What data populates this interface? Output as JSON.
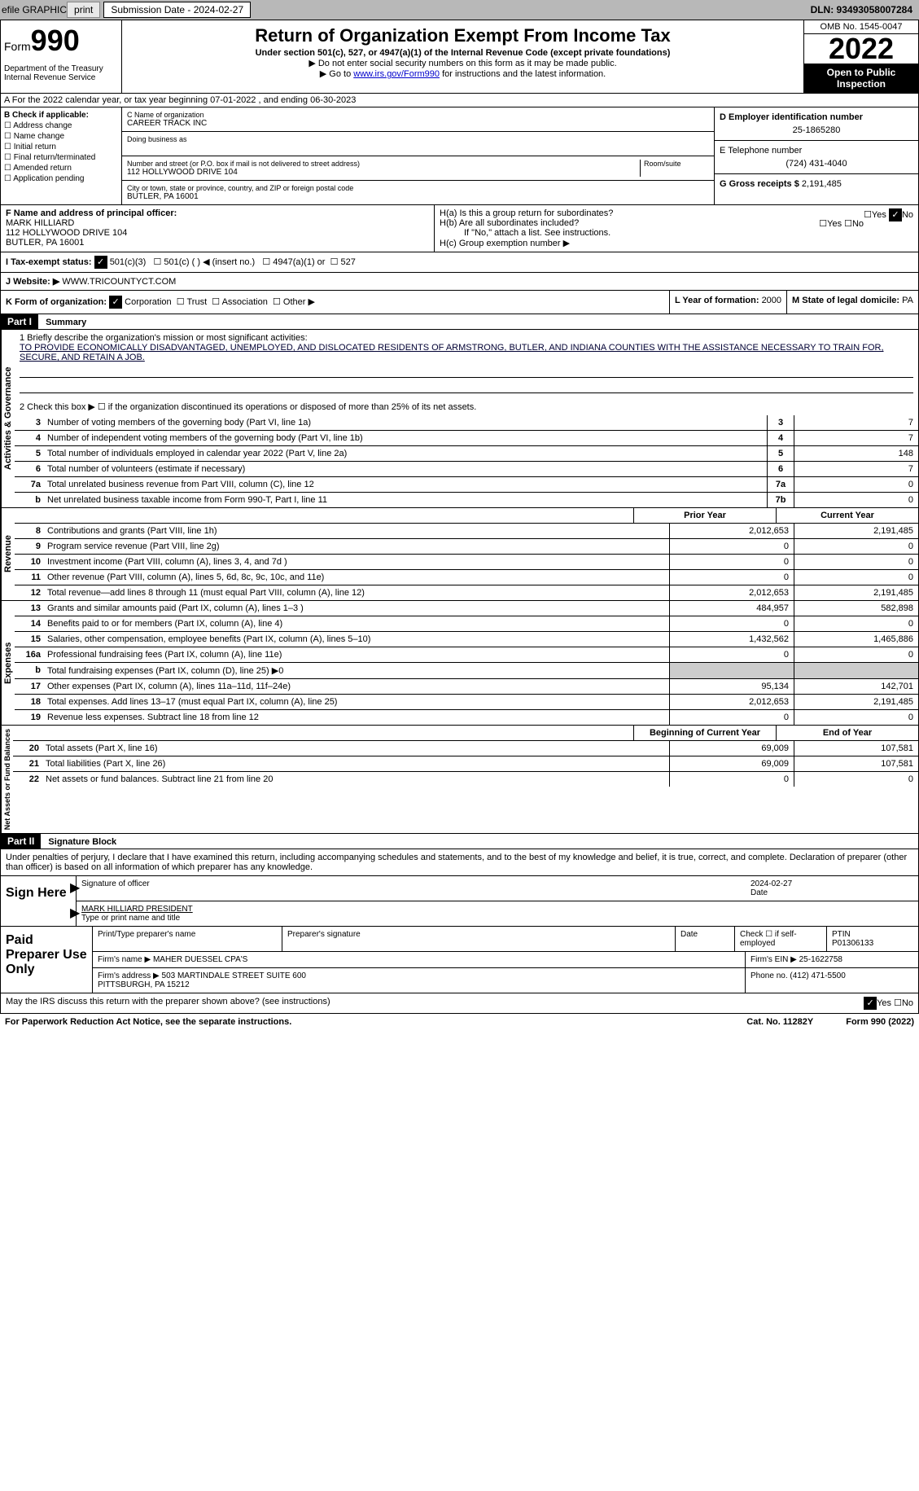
{
  "topbar": {
    "efile": "efile GRAPHIC",
    "print": "print",
    "sub_date_label": "Submission Date - 2024-02-27",
    "dln": "DLN: 93493058007284"
  },
  "header": {
    "form_label": "Form",
    "form_num": "990",
    "dept": "Department of the Treasury\nInternal Revenue Service",
    "title": "Return of Organization Exempt From Income Tax",
    "subtitle": "Under section 501(c), 527, or 4947(a)(1) of the Internal Revenue Code (except private foundations)",
    "note1": "▶ Do not enter social security numbers on this form as it may be made public.",
    "note2_pre": "▶ Go to ",
    "note2_link": "www.irs.gov/Form990",
    "note2_post": " for instructions and the latest information.",
    "omb": "OMB No. 1545-0047",
    "year": "2022",
    "inspection": "Open to Public Inspection"
  },
  "section_a": "A For the 2022 calendar year, or tax year beginning 07-01-2022 , and ending 06-30-2023",
  "section_b": {
    "label": "B Check if applicable:",
    "items": [
      "Address change",
      "Name change",
      "Initial return",
      "Final return/terminated",
      "Amended return",
      "Application pending"
    ]
  },
  "section_c": {
    "name_label": "C Name of organization",
    "name": "CAREER TRACK INC",
    "dba_label": "Doing business as",
    "addr_label": "Number and street (or P.O. box if mail is not delivered to street address)",
    "room_label": "Room/suite",
    "addr": "112 HOLLYWOOD DRIVE 104",
    "city_label": "City or town, state or province, country, and ZIP or foreign postal code",
    "city": "BUTLER, PA  16001"
  },
  "section_d": {
    "label": "D Employer identification number",
    "ein": "25-1865280"
  },
  "section_e": {
    "label": "E Telephone number",
    "phone": "(724) 431-4040"
  },
  "section_g": {
    "label": "G Gross receipts $",
    "val": "2,191,485"
  },
  "section_f": {
    "label": "F Name and address of principal officer:",
    "name": "MARK HILLIARD",
    "addr": "112 HOLLYWOOD DRIVE 104\nBUTLER, PA  16001"
  },
  "section_h": {
    "ha": "H(a) Is this a group return for subordinates?",
    "hb": "H(b) Are all subordinates included?",
    "hb_note": "If \"No,\" attach a list. See instructions.",
    "hc": "H(c) Group exemption number ▶"
  },
  "section_i": {
    "label": "I Tax-exempt status:",
    "opt1": "501(c)(3)",
    "opt2": "501(c) (  ) ◀ (insert no.)",
    "opt3": "4947(a)(1) or",
    "opt4": "527"
  },
  "section_j": {
    "label": "J Website: ▶",
    "url": "WWW.TRICOUNTYCT.COM"
  },
  "section_k": {
    "label": "K Form of organization:",
    "opts": [
      "Corporation",
      "Trust",
      "Association",
      "Other ▶"
    ]
  },
  "section_l": {
    "label": "L Year of formation:",
    "val": "2000"
  },
  "section_m": {
    "label": "M State of legal domicile:",
    "val": "PA"
  },
  "part1": {
    "header": "Part I",
    "title": "Summary",
    "line1_label": "1  Briefly describe the organization's mission or most significant activities:",
    "mission": "TO PROVIDE ECONOMICALLY DISADVANTAGED, UNEMPLOYED, AND DISLOCATED RESIDENTS OF ARMSTRONG, BUTLER, AND INDIANA COUNTIES WITH THE ASSISTANCE NECESSARY TO TRAIN FOR, SECURE, AND RETAIN A JOB.",
    "line2": "2  Check this box ▶ ☐ if the organization discontinued its operations or disposed of more than 25% of its net assets.",
    "governance_label": "Activities & Governance",
    "revenue_label": "Revenue",
    "expenses_label": "Expenses",
    "netassets_label": "Net Assets or Fund Balances",
    "prior_year": "Prior Year",
    "current_year": "Current Year",
    "begin_year": "Beginning of Current Year",
    "end_year": "End of Year",
    "lines_gov": [
      {
        "n": "3",
        "t": "Number of voting members of the governing body (Part VI, line 1a)",
        "box": "3",
        "v": "7"
      },
      {
        "n": "4",
        "t": "Number of independent voting members of the governing body (Part VI, line 1b)",
        "box": "4",
        "v": "7"
      },
      {
        "n": "5",
        "t": "Total number of individuals employed in calendar year 2022 (Part V, line 2a)",
        "box": "5",
        "v": "148"
      },
      {
        "n": "6",
        "t": "Total number of volunteers (estimate if necessary)",
        "box": "6",
        "v": "7"
      },
      {
        "n": "7a",
        "t": "Total unrelated business revenue from Part VIII, column (C), line 12",
        "box": "7a",
        "v": "0"
      },
      {
        "n": "b",
        "t": "Net unrelated business taxable income from Form 990-T, Part I, line 11",
        "box": "7b",
        "v": "0"
      }
    ],
    "lines_rev": [
      {
        "n": "8",
        "t": "Contributions and grants (Part VIII, line 1h)",
        "py": "2,012,653",
        "cy": "2,191,485"
      },
      {
        "n": "9",
        "t": "Program service revenue (Part VIII, line 2g)",
        "py": "0",
        "cy": "0"
      },
      {
        "n": "10",
        "t": "Investment income (Part VIII, column (A), lines 3, 4, and 7d )",
        "py": "0",
        "cy": "0"
      },
      {
        "n": "11",
        "t": "Other revenue (Part VIII, column (A), lines 5, 6d, 8c, 9c, 10c, and 11e)",
        "py": "0",
        "cy": "0"
      },
      {
        "n": "12",
        "t": "Total revenue—add lines 8 through 11 (must equal Part VIII, column (A), line 12)",
        "py": "2,012,653",
        "cy": "2,191,485"
      }
    ],
    "lines_exp": [
      {
        "n": "13",
        "t": "Grants and similar amounts paid (Part IX, column (A), lines 1–3 )",
        "py": "484,957",
        "cy": "582,898"
      },
      {
        "n": "14",
        "t": "Benefits paid to or for members (Part IX, column (A), line 4)",
        "py": "0",
        "cy": "0"
      },
      {
        "n": "15",
        "t": "Salaries, other compensation, employee benefits (Part IX, column (A), lines 5–10)",
        "py": "1,432,562",
        "cy": "1,465,886"
      },
      {
        "n": "16a",
        "t": "Professional fundraising fees (Part IX, column (A), line 11e)",
        "py": "0",
        "cy": "0"
      },
      {
        "n": "b",
        "t": "Total fundraising expenses (Part IX, column (D), line 25) ▶0",
        "py": "",
        "cy": "",
        "shaded": true
      },
      {
        "n": "17",
        "t": "Other expenses (Part IX, column (A), lines 11a–11d, 11f–24e)",
        "py": "95,134",
        "cy": "142,701"
      },
      {
        "n": "18",
        "t": "Total expenses. Add lines 13–17 (must equal Part IX, column (A), line 25)",
        "py": "2,012,653",
        "cy": "2,191,485"
      },
      {
        "n": "19",
        "t": "Revenue less expenses. Subtract line 18 from line 12",
        "py": "0",
        "cy": "0"
      }
    ],
    "lines_na": [
      {
        "n": "20",
        "t": "Total assets (Part X, line 16)",
        "py": "69,009",
        "cy": "107,581"
      },
      {
        "n": "21",
        "t": "Total liabilities (Part X, line 26)",
        "py": "69,009",
        "cy": "107,581"
      },
      {
        "n": "22",
        "t": "Net assets or fund balances. Subtract line 21 from line 20",
        "py": "0",
        "cy": "0"
      }
    ]
  },
  "part2": {
    "header": "Part II",
    "title": "Signature Block",
    "decl": "Under penalties of perjury, I declare that I have examined this return, including accompanying schedules and statements, and to the best of my knowledge and belief, it is true, correct, and complete. Declaration of preparer (other than officer) is based on all information of which preparer has any knowledge.",
    "sign_here": "Sign Here",
    "sig_officer": "Signature of officer",
    "sig_date": "2024-02-27",
    "sig_name": "MARK HILLIARD  PRESIDENT",
    "sig_name_label": "Type or print name and title",
    "paid_prep": "Paid Preparer Use Only",
    "prep_name_label": "Print/Type preparer's name",
    "prep_sig_label": "Preparer's signature",
    "date_label": "Date",
    "check_label": "Check ☐ if self-employed",
    "ptin_label": "PTIN",
    "ptin": "P01306133",
    "firm_name_label": "Firm's name ▶",
    "firm_name": "MAHER DUESSEL CPA'S",
    "firm_ein_label": "Firm's EIN ▶",
    "firm_ein": "25-1622758",
    "firm_addr_label": "Firm's address ▶",
    "firm_addr": "503 MARTINDALE STREET SUITE 600\nPITTSBURGH, PA  15212",
    "phone_label": "Phone no.",
    "phone": "(412) 471-5500"
  },
  "footer": {
    "q": "May the IRS discuss this return with the preparer shown above? (see instructions)",
    "yes": "Yes",
    "no": "No",
    "paperwork": "For Paperwork Reduction Act Notice, see the separate instructions.",
    "cat": "Cat. No. 11282Y",
    "form": "Form 990 (2022)"
  }
}
